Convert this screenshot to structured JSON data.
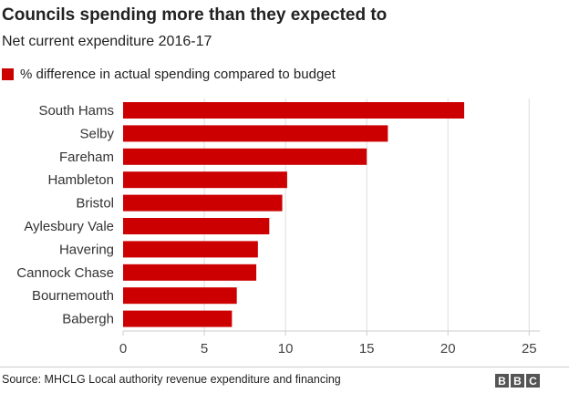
{
  "chart_data": {
    "type": "bar",
    "orientation": "horizontal",
    "title": "Councils spending more than they expected to",
    "subtitle": "Net current expenditure 2016-17",
    "categories": [
      "South Hams",
      "Selby",
      "Fareham",
      "Hambleton",
      "Bristol",
      "Aylesbury Vale",
      "Havering",
      "Cannock Chase",
      "Bournemouth",
      "Babergh"
    ],
    "series": [
      {
        "name": "% difference in actual spending compared to budget",
        "values": [
          21.0,
          16.3,
          15.0,
          10.1,
          9.8,
          9.0,
          8.3,
          8.2,
          7.0,
          6.7
        ],
        "color": "#cc0000"
      }
    ],
    "xlim": [
      0,
      25
    ],
    "xticks": [
      "0",
      "5",
      "10",
      "15",
      "20",
      "25"
    ],
    "grid": "vertical",
    "legend": "top-left"
  },
  "footer": {
    "source": "Source: MHCLG Local authority revenue expenditure and financing",
    "logo": [
      "B",
      "B",
      "C"
    ]
  }
}
